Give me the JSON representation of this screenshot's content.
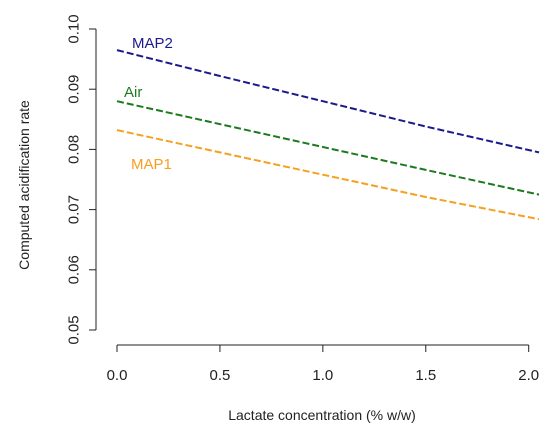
{
  "chart_data": {
    "type": "line",
    "title": "",
    "xlabel": "Lactate concentration (% w/w)",
    "ylabel": "Computed acidification rate",
    "xlim": [
      0.0,
      2.05
    ],
    "ylim": [
      0.05,
      0.1
    ],
    "x_ticks": [
      0.0,
      0.5,
      1.0,
      1.5,
      2.0
    ],
    "x_tick_labels": [
      "0.0",
      "0.5",
      "1.0",
      "1.5",
      "2.0"
    ],
    "y_ticks": [
      0.05,
      0.06,
      0.07,
      0.08,
      0.09,
      0.1
    ],
    "y_tick_labels": [
      "0.05",
      "0.06",
      "0.07",
      "0.08",
      "0.09",
      "0.10"
    ],
    "grid": false,
    "legend": "none (series labeled inline at left)",
    "series": [
      {
        "name": "MAP2",
        "color": "#1a1a8c",
        "line_style": "dashed",
        "x": [
          0.0,
          0.5,
          1.0,
          1.5,
          2.05
        ],
        "values": [
          0.0965,
          0.0922,
          0.088,
          0.0838,
          0.0795
        ]
      },
      {
        "name": "Air",
        "color": "#1e7a1e",
        "line_style": "dashed",
        "x": [
          0.0,
          0.5,
          1.0,
          1.5,
          2.05
        ],
        "values": [
          0.088,
          0.0842,
          0.0804,
          0.0766,
          0.0725
        ]
      },
      {
        "name": "MAP1",
        "color": "#f5a020",
        "line_style": "dashed",
        "x": [
          0.0,
          0.5,
          1.0,
          1.5,
          2.05
        ],
        "values": [
          0.0832,
          0.0795,
          0.0758,
          0.0721,
          0.0684
        ]
      }
    ]
  }
}
